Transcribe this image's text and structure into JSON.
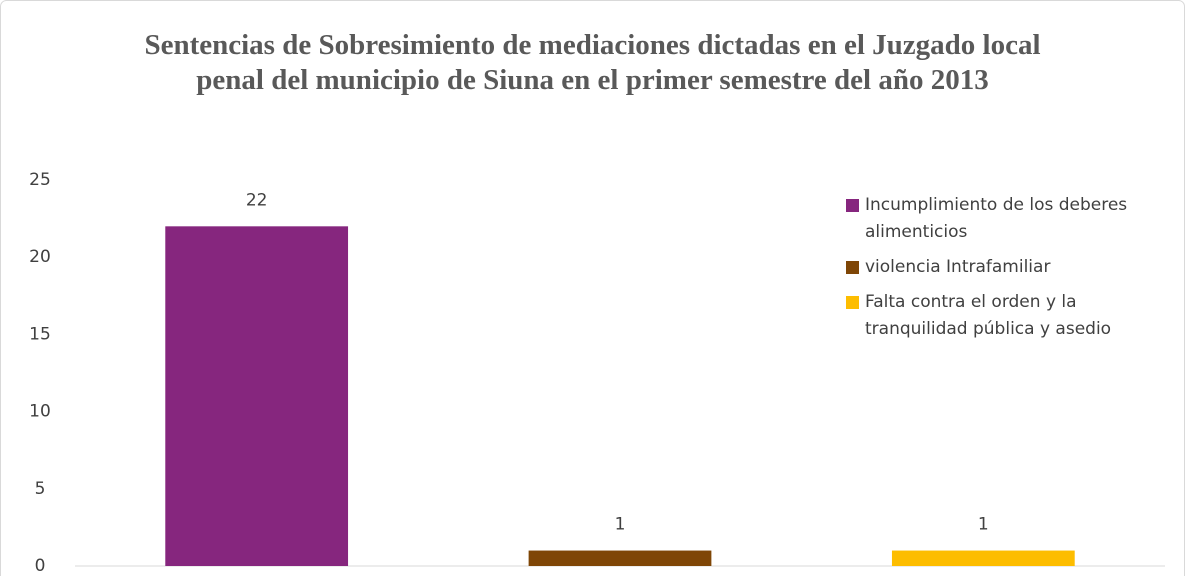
{
  "chart_data": {
    "type": "bar",
    "title": "Sentencias de Sobresimiento de mediaciones dictadas en el Juzgado local penal del municipio de Siuna en el primer semestre del año 2013",
    "categories": [
      null
    ],
    "series": [
      {
        "name": "Incumplimiento de los deberes alimenticios",
        "color": "#86267e",
        "values": [
          22
        ]
      },
      {
        "name": "violencia Intrafamiliar",
        "color": "#7f4606",
        "values": [
          1
        ]
      },
      {
        "name": "Falta contra el orden y la tranquilidad pública y asedio",
        "color": "#fdbd00",
        "values": [
          1
        ]
      }
    ],
    "ylim": [
      0,
      25
    ],
    "yticks": [
      0,
      5,
      10,
      15,
      20,
      25
    ],
    "grid": false,
    "legend": "right"
  }
}
